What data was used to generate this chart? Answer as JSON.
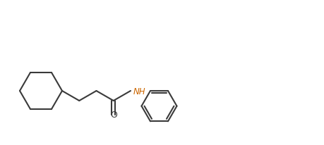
{
  "bg_color": "#ffffff",
  "line_color": "#3a3a3a",
  "text_color": "#3a3a3a",
  "label_color": "#cc6600",
  "line_width": 1.5,
  "font_size": 8.5,
  "figsize": [
    4.59,
    2.07
  ],
  "dpi": 100
}
